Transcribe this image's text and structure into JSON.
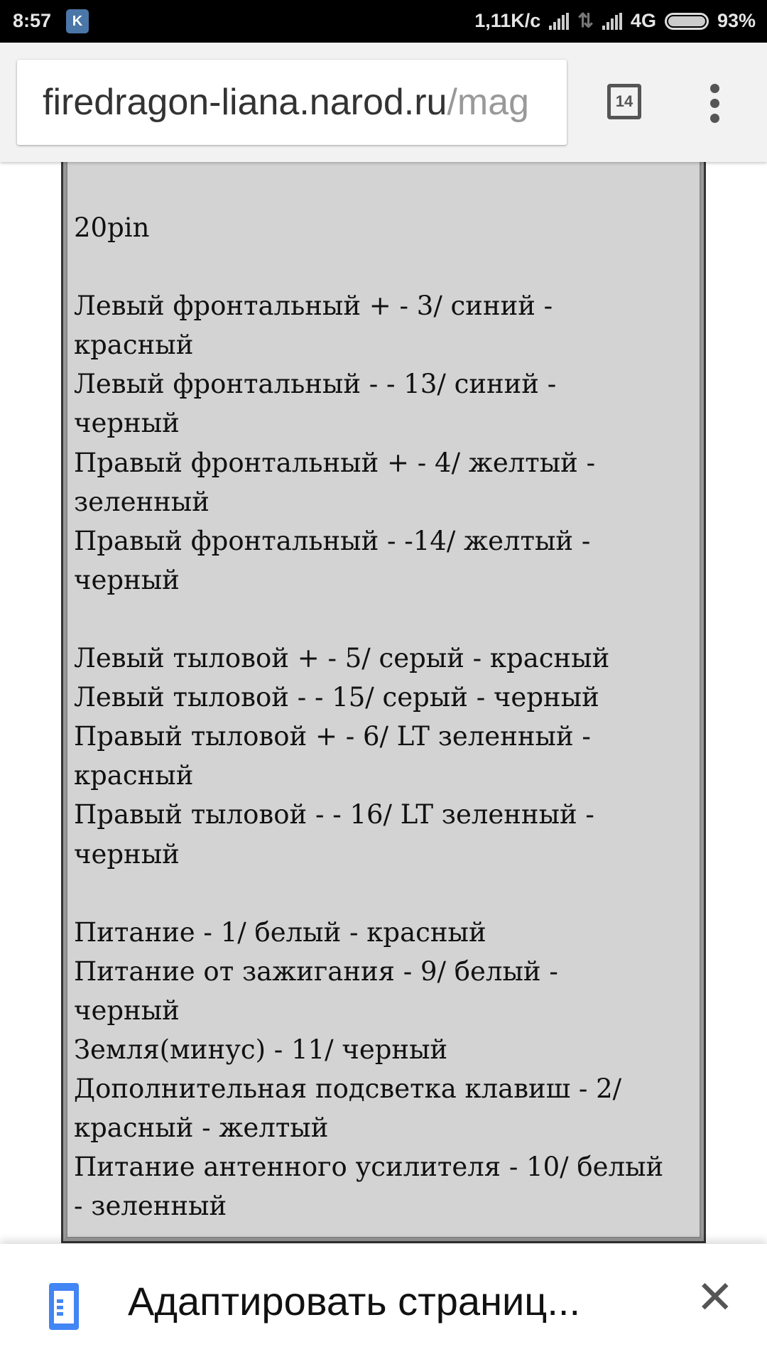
{
  "status_bar": {
    "time": "8:57",
    "app_icon": "vk-icon",
    "speed": "1,11K/c",
    "network": "4G",
    "battery": "93%",
    "battery_level": 93
  },
  "browser": {
    "url_host": "firedragon-liana.narod.ru",
    "url_path": "/mag",
    "tab_count": "14"
  },
  "content": {
    "lines": [
      "20pin",
      "",
      "Левый фронтальный + - 3/ синий -",
      "красный",
      "Левый фронтальный - - 13/ синий -",
      "черный",
      "Правый фронтальный + - 4/ желтый -",
      "зеленный",
      "Правый фронтальный - -14/ желтый -",
      "черный",
      "",
      "Левый тыловой + - 5/ серый - красный",
      "Левый тыловой - - 15/ серый - черный",
      "Правый тыловой + - 6/ LT зеленный -",
      "красный",
      "Правый тыловой - - 16/ LT зеленный -",
      "черный",
      "",
      "Питание - 1/ белый - красный",
      "Питание от зажигания - 9/ белый -",
      "черный",
      "Земля(минус) - 11/ черный",
      "Дополнительная подсветка клавиш - 2/",
      "красный - желтый",
      "Питание антенного усилителя - 10/ белый",
      "- зеленный"
    ]
  },
  "bottom_bar": {
    "label": "Адаптировать страниц...",
    "icon": "reader-mode-icon",
    "close_icon": "close-icon"
  }
}
